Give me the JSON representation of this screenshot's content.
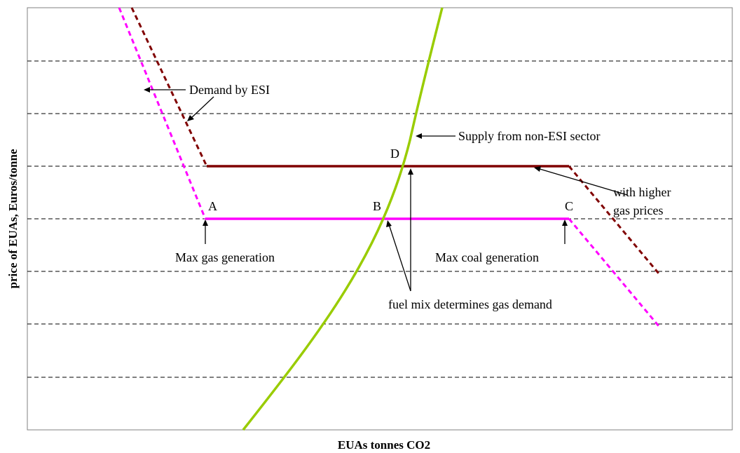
{
  "axes": {
    "x_title": "EUAs tonnes CO2",
    "y_title": "price of EUAs, Euros/tonne"
  },
  "colors": {
    "gas_demand": "#ff00ff",
    "high_gas_demand": "#800000",
    "supply": "#99cc00",
    "grid": "#000000",
    "frame": "#808080"
  },
  "annotations": {
    "demand_esi": "Demand by ESI",
    "supply_non_esi": "Supply from non-ESI sector",
    "higher_gas_line1": "with higher",
    "higher_gas_line2": "gas prices",
    "max_gas": "Max gas generation",
    "max_coal": "Max coal generation",
    "fuel_mix": "fuel mix determines gas demand"
  },
  "points": {
    "A": "A",
    "B": "B",
    "C": "C",
    "D": "D"
  }
}
